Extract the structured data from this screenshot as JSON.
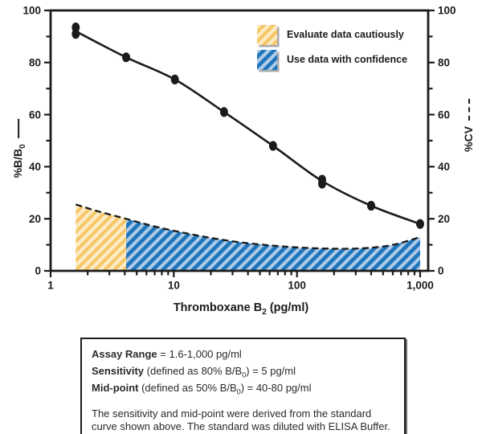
{
  "chart_data": {
    "type": "line",
    "title": "",
    "xlabel": {
      "main": "Thromboxane B",
      "sub": "2",
      "unit": " (pg/ml)"
    },
    "x_axis": {
      "scale": "log",
      "min": 1,
      "max": 1162,
      "major_ticks": [
        {
          "value": 1,
          "label": "1"
        },
        {
          "value": 10,
          "label": "10"
        },
        {
          "value": 100,
          "label": "100"
        },
        {
          "value": 1000,
          "label": "1,000"
        }
      ]
    },
    "y_axis_left": {
      "label_main": "%B/B",
      "label_sub": "0",
      "min": 0,
      "max": 100,
      "major_ticks": [
        0,
        20,
        40,
        60,
        80,
        100
      ],
      "minor_ticks": [
        10,
        30,
        50,
        70,
        90
      ]
    },
    "y_axis_right": {
      "label": "%CV",
      "min": 0,
      "max": 100,
      "major_ticks": [
        0,
        20,
        40,
        60,
        80,
        100
      ],
      "minor_ticks": [
        10,
        30,
        50,
        70,
        90
      ]
    },
    "series": [
      {
        "name": "standard-curve-%B/B0",
        "line_style": "solid",
        "marker": "filled-ellipse",
        "curve_x": [
          1.6,
          4.1,
          10.2,
          25.6,
          64,
          160,
          400,
          1000
        ],
        "curve_y": [
          92,
          82,
          73.5,
          61,
          48,
          34.5,
          25,
          18
        ],
        "points": [
          {
            "x": 1.6,
            "y": 93.5
          },
          {
            "x": 1.6,
            "y": 91
          },
          {
            "x": 4.1,
            "y": 82
          },
          {
            "x": 10.2,
            "y": 73.5
          },
          {
            "x": 25.6,
            "y": 61
          },
          {
            "x": 64,
            "y": 48
          },
          {
            "x": 160,
            "y": 35
          },
          {
            "x": 160,
            "y": 33.5
          },
          {
            "x": 400,
            "y": 25
          },
          {
            "x": 1000,
            "y": 18
          }
        ]
      },
      {
        "name": "cv-curve-%CV",
        "line_style": "dashed",
        "x": [
          1.6,
          2.5,
          4.1,
          6.3,
          10,
          16,
          25,
          40,
          64,
          100,
          160,
          250,
          400,
          630,
          1000
        ],
        "y": [
          25.5,
          22.7,
          20,
          17.6,
          15.4,
          13.5,
          11.9,
          10.6,
          9.7,
          9.0,
          8.6,
          8.5,
          8.9,
          10.2,
          13
        ]
      }
    ],
    "regions": [
      {
        "name": "evaluate-data-cautiously",
        "x_start": 1.6,
        "x_end": 4.1,
        "fill_bg": "#FCEBC4",
        "stripe": "#F6C667"
      },
      {
        "name": "use-data-with-confidence",
        "x_start": 4.1,
        "x_end": 1000,
        "fill_bg": "#AFCBE8",
        "stripe": "#1F76BC"
      }
    ],
    "legend": [
      {
        "label": "Evaluate data cautiously",
        "swatch": "yellow-hatch"
      },
      {
        "label": "Use data with confidence",
        "swatch": "blue-hatch"
      }
    ],
    "grid": false,
    "legend_position": "top-right-inside"
  },
  "info_box": {
    "lines": [
      {
        "bold": "Assay Range",
        "pre": " = 1.6-1,000 pg/ml",
        "sub": "",
        "post": ""
      },
      {
        "bold": "Sensitivity",
        "pre": " (defined as 80% B/B",
        "sub": "0",
        "post": ") = 5 pg/ml"
      },
      {
        "bold": "Mid-point",
        "pre": " (defined as 50% B/B",
        "sub": "0",
        "post": ") = 40-80 pg/ml"
      }
    ],
    "paragraph": "The sensitivity and mid-point were derived from the standard curve shown above. The standard was diluted with ELISA Buffer."
  },
  "colors": {
    "ink": "#1b1b1b",
    "text": "#2a2a2a",
    "yellow_bg": "#FCEBC4",
    "yellow_stripe": "#F6C667",
    "blue_bg": "#AFCBE8",
    "blue_stripe": "#1F76BC",
    "swatch_shadow": "#a8aaad"
  }
}
